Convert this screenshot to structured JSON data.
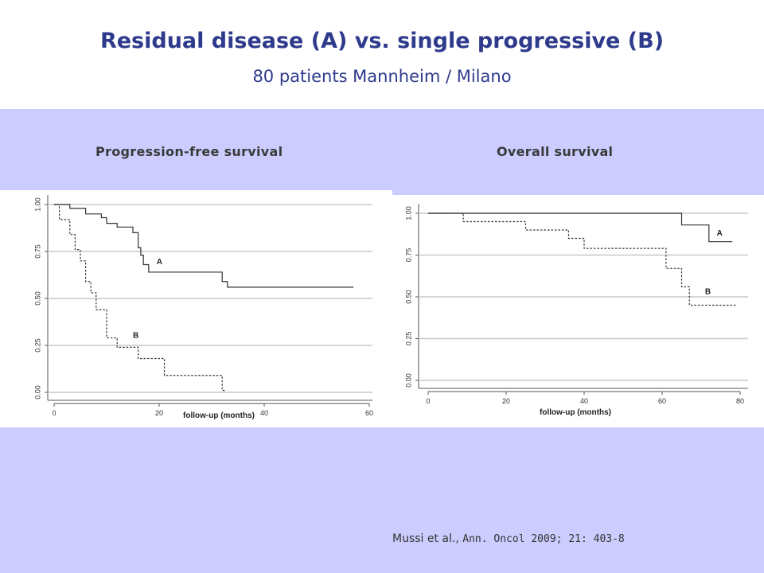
{
  "header": {
    "title": "Residual disease (A) vs. single progressive (B)",
    "subtitle": "80 patients  Mannheim / Milano"
  },
  "panels": {
    "left_label": "Progression-free survival",
    "right_label": "Overall survival"
  },
  "citation": {
    "authors": "Mussi et al.,",
    "reference": "Ann. Oncol 2009; 21: 403-8"
  },
  "colors": {
    "title": "#2e3a8c",
    "band": "#ccccff"
  },
  "chart_data": [
    {
      "type": "line",
      "xlabel": "follow-up (months)",
      "ylabel": "",
      "xlim": [
        0,
        60
      ],
      "ylim": [
        0,
        1
      ],
      "xticks": [
        0,
        20,
        40,
        60
      ],
      "yticks": [
        "0.00",
        "0.25",
        "0.50",
        "0.75",
        "1.00"
      ],
      "grid": true,
      "series": [
        {
          "name": "A",
          "style": "solid",
          "x": [
            0,
            3,
            6,
            9,
            10,
            12,
            15,
            16,
            16.5,
            17,
            18,
            32,
            33,
            57
          ],
          "y": [
            1.0,
            0.98,
            0.95,
            0.93,
            0.9,
            0.88,
            0.85,
            0.77,
            0.73,
            0.68,
            0.64,
            0.59,
            0.56,
            0.56
          ]
        },
        {
          "name": "B",
          "style": "dashed",
          "x": [
            0,
            1,
            3,
            4,
            5,
            6,
            7,
            8,
            10,
            12,
            16,
            21,
            32,
            32.5
          ],
          "y": [
            1.0,
            0.92,
            0.84,
            0.76,
            0.7,
            0.59,
            0.53,
            0.44,
            0.29,
            0.24,
            0.18,
            0.09,
            0.01,
            0.01
          ]
        }
      ]
    },
    {
      "type": "line",
      "xlabel": "follow-up (months)",
      "ylabel": "",
      "xlim": [
        0,
        80
      ],
      "ylim": [
        0,
        1
      ],
      "xticks": [
        0,
        20,
        40,
        60,
        80
      ],
      "yticks": [
        "0.00",
        "0.25",
        "0.50",
        "0.75",
        "1.00"
      ],
      "grid": true,
      "series": [
        {
          "name": "A",
          "style": "solid",
          "x": [
            0,
            65,
            72,
            78
          ],
          "y": [
            1.0,
            0.93,
            0.83,
            0.83
          ]
        },
        {
          "name": "B",
          "style": "dashed",
          "x": [
            0,
            9,
            25,
            36,
            40,
            61,
            65,
            67,
            79
          ],
          "y": [
            1.0,
            0.95,
            0.9,
            0.85,
            0.79,
            0.67,
            0.56,
            0.45,
            0.45
          ]
        }
      ]
    }
  ]
}
